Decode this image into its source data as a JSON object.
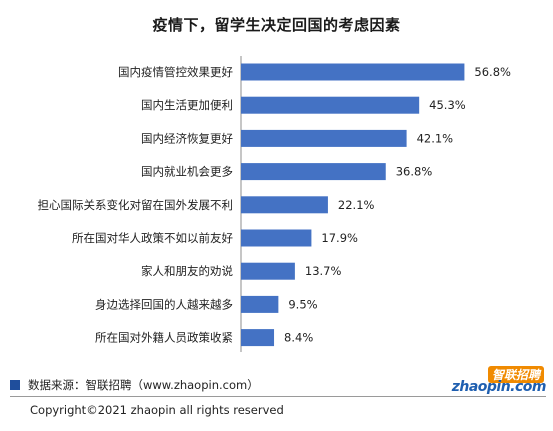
{
  "chart_data": {
    "type": "bar",
    "orientation": "horizontal",
    "title": "疫情下，留学生决定回国的考虑因素",
    "categories": [
      "国内疫情管控效果更好",
      "国内生活更加便利",
      "国内经济恢复更好",
      "国内就业机会更多",
      "担心国际关系变化对留在国外发展不利",
      "所在国对华人政策不如以前友好",
      "家人和朋友的劝说",
      "身边选择回国的人越来越多",
      "所在国对外籍人员政策收紧"
    ],
    "values": [
      56.8,
      45.3,
      42.1,
      36.8,
      22.1,
      17.9,
      13.7,
      9.5,
      8.4
    ],
    "value_labels": [
      "56.8%",
      "45.3%",
      "42.1%",
      "36.8%",
      "22.1%",
      "17.9%",
      "13.7%",
      "9.5%",
      "8.4%"
    ],
    "xlim": [
      0,
      60
    ],
    "bar_color": "#4472c4"
  },
  "footer": {
    "source": "数据来源：智联招聘（www.zhaopin.com）",
    "copyright": "Copyright©2021 zhaopin all rights reserved",
    "source_marker_color": "#1f4e9c"
  },
  "logo": {
    "cn": "智联招聘",
    "en": "zhaopin.com"
  }
}
